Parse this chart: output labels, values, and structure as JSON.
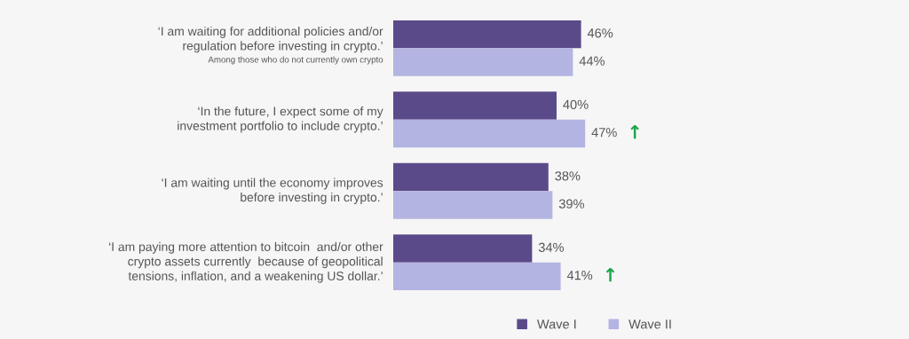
{
  "chart_data": {
    "type": "bar",
    "orientation": "horizontal",
    "categories": [
      "‘I am waiting for additional policies and/or\nregulation before investing in crypto.’",
      "‘In the future, I expect some of my\ninvestment portfolio to include crypto.’",
      "‘I am waiting until the economy improves\nbefore investing in crypto.’",
      "‘I am paying more attention to bitcoin  and/or other\ncrypto assets currently  because of geopolitical\ntensions, inflation, and a weakening US dollar.’"
    ],
    "series": [
      {
        "name": "Wave I",
        "color": "#5b4a8a",
        "values": [
          46,
          40,
          38,
          34
        ],
        "value_labels": [
          "46%",
          "40%",
          "38%",
          "34%"
        ]
      },
      {
        "name": "Wave II",
        "color": "#b4b4e2",
        "values": [
          44,
          47,
          39,
          41
        ],
        "value_labels": [
          "44%",
          "47% ↑",
          "39%",
          "41% ↑"
        ]
      }
    ],
    "legend": "bottom",
    "annotations": [
      "Among those who do not currently own crypto"
    ]
  }
}
